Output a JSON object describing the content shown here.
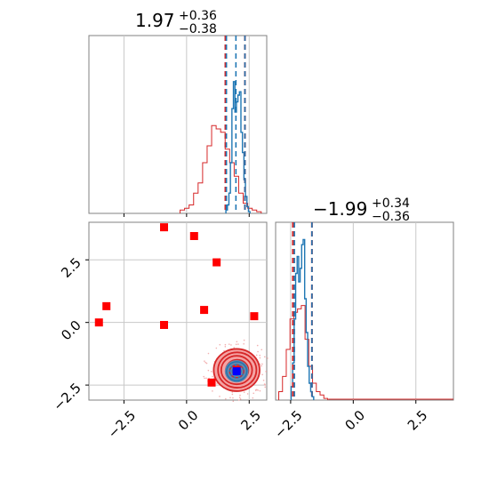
{
  "chart_data": [
    {
      "type": "histogram",
      "panel": "x-marginal",
      "title": {
        "main": "1.97",
        "sup": "+0.36",
        "sub": "−0.38"
      },
      "xlim": [
        -3.9,
        3.2
      ],
      "grid": true,
      "bins": [
        -0.26,
        -0.08,
        0.1,
        0.28,
        0.46,
        0.64,
        0.82,
        1.0,
        1.18,
        1.36,
        1.54,
        1.72,
        1.9,
        2.08,
        2.26,
        2.44,
        2.62,
        2.8,
        2.98
      ],
      "series": [
        {
          "color": "#1f77b4",
          "x": [
            1.6,
            1.66,
            1.72,
            1.78,
            1.84,
            1.9,
            1.96,
            2.02,
            2.08,
            2.14,
            2.2,
            2.26,
            2.32,
            2.38,
            2.44,
            2.5
          ],
          "values": [
            0.02,
            0.05,
            0.12,
            0.3,
            0.62,
            0.78,
            0.6,
            0.66,
            0.7,
            0.72,
            0.48,
            0.36,
            0.2,
            0.1,
            0.04,
            0.01
          ],
          "quantile_lines": [
            1.59,
            1.97,
            2.33
          ]
        },
        {
          "color": "#d62728",
          "values": [
            0.02,
            0.03,
            0.05,
            0.12,
            0.18,
            0.3,
            0.4,
            0.52,
            0.5,
            0.48,
            0.38,
            0.3,
            0.22,
            0.12,
            0.06,
            0.03,
            0.02,
            0.01
          ],
          "quantile_lines": [
            1.55,
            2.33
          ]
        }
      ]
    },
    {
      "type": "scatter-contour",
      "panel": "joint",
      "xlim": [
        -3.9,
        3.2
      ],
      "ylim": [
        -3.1,
        4.0
      ],
      "xticks": [
        "−2.5",
        "0.0",
        "2.5"
      ],
      "yticks": [
        "2.5",
        "0.0",
        "−2.5"
      ],
      "grid": true,
      "red_points": [
        [
          -0.9,
          3.8
        ],
        [
          0.3,
          3.45
        ],
        [
          1.2,
          2.4
        ],
        [
          -3.2,
          0.65
        ],
        [
          -3.5,
          0.0
        ],
        [
          -0.9,
          -0.1
        ],
        [
          0.7,
          0.5
        ],
        [
          2.7,
          0.25
        ],
        [
          1.0,
          -2.4
        ]
      ],
      "red_center": [
        2.0,
        -1.9
      ],
      "blue_center": [
        2.0,
        -1.95
      ],
      "contours_red": [
        0.28,
        0.42,
        0.58,
        0.72,
        0.86
      ],
      "contours_blue": [
        0.16,
        0.26,
        0.38
      ]
    },
    {
      "type": "histogram",
      "panel": "y-marginal",
      "title": {
        "main": "−1.99",
        "sup": "+0.34",
        "sub": "−0.36"
      },
      "xlim": [
        -3.1,
        4.0
      ],
      "xticks": [
        "−2.5",
        "0.0",
        "2.5"
      ],
      "grid": true,
      "series": [
        {
          "color": "#1f77b4",
          "x": [
            -2.45,
            -2.39,
            -2.33,
            -2.27,
            -2.21,
            -2.15,
            -2.09,
            -2.03,
            -1.97,
            -1.91,
            -1.85,
            -1.79,
            -1.73,
            -1.67,
            -1.61
          ],
          "values": [
            0.08,
            0.22,
            0.48,
            0.75,
            0.85,
            0.7,
            0.78,
            0.92,
            0.95,
            0.6,
            0.4,
            0.2,
            0.1,
            0.05,
            0.02
          ],
          "quantile_lines": [
            -2.35,
            -1.65
          ]
        },
        {
          "color": "#d62728",
          "x": [
            -2.9,
            -2.75,
            -2.6,
            -2.45,
            -2.3,
            -2.15,
            -2.0,
            -1.85,
            -1.7,
            -1.55,
            -1.4,
            -1.25,
            -1.1,
            2.0,
            2.5,
            3.0,
            3.4
          ],
          "values": [
            0.05,
            0.14,
            0.3,
            0.48,
            0.52,
            0.54,
            0.56,
            0.36,
            0.2,
            0.1,
            0.05,
            0.03,
            0.01,
            0.01,
            0.01,
            0.0,
            0.01
          ],
          "quantile_lines": [
            -2.41,
            -1.65
          ]
        }
      ]
    }
  ]
}
